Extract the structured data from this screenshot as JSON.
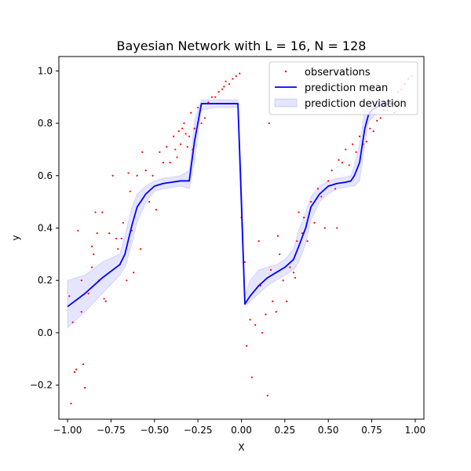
{
  "chart_data": {
    "type": "line",
    "title": "Bayesian Network with L = 16, N = 128",
    "xlabel": "X",
    "ylabel": "y",
    "xlim": [
      -1.05,
      1.05
    ],
    "ylim": [
      -0.33,
      1.055
    ],
    "grid": false,
    "legend_placement": "top-right",
    "xticks": [
      -1.0,
      -0.75,
      -0.5,
      -0.25,
      0.0,
      0.25,
      0.5,
      0.75,
      1.0
    ],
    "xtick_labels": [
      "−1.00",
      "−0.75",
      "−0.50",
      "−0.25",
      "0.00",
      "0.25",
      "0.50",
      "0.75",
      "1.00"
    ],
    "yticks": [
      -0.2,
      0.0,
      0.2,
      0.4,
      0.6,
      0.8,
      1.0
    ],
    "ytick_labels": [
      "−0.2",
      "0.0",
      "0.2",
      "0.4",
      "0.6",
      "0.8",
      "1.0"
    ],
    "colors": {
      "observations": "#ff0000",
      "mean": "#0000ff",
      "band_fill": "#0000ff",
      "band_opacity": 0.1
    },
    "series": [
      {
        "name": "observations",
        "kind": "scatter",
        "x": [
          -0.99,
          -0.98,
          -0.97,
          -0.96,
          -0.95,
          -0.94,
          -0.92,
          -0.91,
          -0.9,
          -0.88,
          -0.86,
          -0.85,
          -0.84,
          -0.83,
          -0.82,
          -0.8,
          -0.79,
          -0.78,
          -0.76,
          -0.74,
          -0.72,
          -0.71,
          -0.7,
          -0.69,
          -0.68,
          -0.66,
          -0.65,
          -0.64,
          -0.63,
          -0.62,
          -0.6,
          -0.58,
          -0.57,
          -0.55,
          -0.53,
          -0.51,
          -0.49,
          -0.47,
          -0.45,
          -0.43,
          -0.41,
          -0.39,
          -0.38,
          -0.37,
          -0.36,
          -0.35,
          -0.34,
          -0.33,
          -0.32,
          -0.31,
          -0.3,
          -0.29,
          -0.28,
          -0.27,
          -0.25,
          -0.23,
          -0.21,
          -0.19,
          -0.17,
          -0.15,
          -0.13,
          -0.11,
          -0.1,
          -0.09,
          -0.07,
          -0.05,
          -0.03,
          -0.01,
          0.0,
          0.02,
          0.03,
          0.05,
          0.06,
          0.08,
          0.1,
          0.11,
          0.12,
          0.14,
          0.15,
          0.17,
          0.18,
          0.2,
          0.21,
          0.22,
          0.24,
          0.26,
          0.28,
          0.3,
          0.31,
          0.32,
          0.33,
          0.35,
          0.36,
          0.38,
          0.4,
          0.42,
          0.44,
          0.46,
          0.48,
          0.5,
          0.52,
          0.54,
          0.56,
          0.58,
          0.6,
          0.62,
          0.64,
          0.66,
          0.68,
          0.7,
          0.72,
          0.74,
          0.76,
          0.78,
          0.8,
          0.82,
          0.84,
          0.86,
          0.88,
          0.9,
          0.92,
          0.94,
          0.96,
          0.98,
          -0.92,
          -0.86,
          0.16,
          0.55
        ],
        "y": [
          0.14,
          -0.27,
          0.04,
          -0.15,
          -0.14,
          0.39,
          0.2,
          -0.12,
          -0.21,
          0.15,
          0.33,
          0.3,
          0.46,
          0.38,
          0.2,
          0.46,
          0.13,
          0.12,
          0.38,
          0.6,
          0.36,
          0.32,
          0.26,
          0.36,
          0.42,
          0.2,
          0.61,
          0.54,
          0.39,
          0.23,
          0.6,
          0.32,
          0.69,
          0.62,
          0.5,
          0.6,
          0.47,
          0.69,
          0.65,
          0.71,
          0.65,
          0.75,
          0.7,
          0.67,
          0.77,
          0.72,
          0.78,
          0.8,
          0.76,
          0.71,
          0.75,
          0.84,
          0.7,
          0.78,
          0.86,
          0.8,
          0.82,
          0.88,
          0.9,
          0.9,
          0.92,
          0.93,
          0.94,
          0.96,
          0.95,
          0.97,
          0.98,
          0.99,
          0.44,
          0.27,
          -0.05,
          0.05,
          -0.17,
          0.03,
          0.35,
          0.18,
          0.0,
          0.07,
          -0.24,
          0.24,
          0.12,
          0.08,
          0.37,
          0.3,
          0.2,
          0.12,
          0.25,
          0.23,
          0.21,
          0.35,
          0.46,
          0.38,
          0.44,
          0.35,
          0.5,
          0.42,
          0.55,
          0.52,
          0.4,
          0.58,
          0.62,
          0.55,
          0.66,
          0.65,
          0.7,
          0.64,
          0.72,
          0.69,
          0.75,
          0.72,
          0.73,
          0.78,
          0.77,
          0.81,
          0.82,
          0.85,
          0.85,
          0.89,
          0.84,
          0.92,
          0.93,
          0.95,
          0.97,
          0.98,
          0.08,
          0.25,
          0.8,
          0.4
        ],
        "color": "#ff0000"
      },
      {
        "name": "prediction mean",
        "kind": "line",
        "x": [
          -1.0,
          -0.9,
          -0.8,
          -0.7,
          -0.67,
          -0.63,
          -0.6,
          -0.55,
          -0.5,
          -0.45,
          -0.4,
          -0.35,
          -0.3,
          -0.27,
          -0.23,
          -0.15,
          -0.1,
          -0.05,
          -0.02,
          0.0,
          0.02,
          0.05,
          0.1,
          0.15,
          0.2,
          0.25,
          0.3,
          0.33,
          0.37,
          0.4,
          0.45,
          0.5,
          0.55,
          0.6,
          0.63,
          0.65,
          0.68,
          0.71,
          0.73,
          0.75,
          0.8,
          0.85,
          0.88
        ],
        "y": [
          0.1,
          0.15,
          0.21,
          0.26,
          0.3,
          0.41,
          0.48,
          0.53,
          0.56,
          0.57,
          0.575,
          0.58,
          0.58,
          0.73,
          0.875,
          0.875,
          0.875,
          0.875,
          0.875,
          0.5,
          0.11,
          0.14,
          0.18,
          0.21,
          0.23,
          0.25,
          0.28,
          0.33,
          0.4,
          0.48,
          0.53,
          0.56,
          0.57,
          0.575,
          0.58,
          0.6,
          0.65,
          0.78,
          0.83,
          0.85,
          0.87,
          0.875,
          0.875
        ],
        "color": "#0000ff"
      },
      {
        "name": "prediction deviation",
        "kind": "band",
        "x": [
          -1.0,
          -0.9,
          -0.8,
          -0.7,
          -0.67,
          -0.63,
          -0.6,
          -0.55,
          -0.5,
          -0.45,
          -0.4,
          -0.35,
          -0.3,
          -0.27,
          -0.23,
          -0.15,
          -0.1,
          -0.05,
          -0.02,
          0.0,
          0.02,
          0.05,
          0.1,
          0.15,
          0.2,
          0.25,
          0.3,
          0.33,
          0.37,
          0.4,
          0.45,
          0.5,
          0.55,
          0.6,
          0.63,
          0.65,
          0.68,
          0.71,
          0.73,
          0.75,
          0.8,
          0.85,
          0.88
        ],
        "lower": [
          0.02,
          0.08,
          0.15,
          0.22,
          0.25,
          0.34,
          0.42,
          0.5,
          0.54,
          0.55,
          0.555,
          0.56,
          0.55,
          0.65,
          0.85,
          0.86,
          0.86,
          0.86,
          0.86,
          0.42,
          0.1,
          0.12,
          0.15,
          0.18,
          0.2,
          0.22,
          0.24,
          0.27,
          0.34,
          0.43,
          0.5,
          0.53,
          0.55,
          0.555,
          0.56,
          0.56,
          0.58,
          0.72,
          0.8,
          0.82,
          0.85,
          0.86,
          0.86
        ],
        "upper": [
          0.2,
          0.22,
          0.27,
          0.3,
          0.37,
          0.48,
          0.53,
          0.56,
          0.58,
          0.59,
          0.595,
          0.6,
          0.62,
          0.81,
          0.89,
          0.89,
          0.89,
          0.89,
          0.89,
          0.6,
          0.14,
          0.2,
          0.24,
          0.25,
          0.26,
          0.28,
          0.32,
          0.39,
          0.46,
          0.52,
          0.56,
          0.58,
          0.59,
          0.595,
          0.6,
          0.64,
          0.72,
          0.85,
          0.87,
          0.88,
          0.89,
          0.89,
          0.89
        ],
        "color": "#0000ff"
      }
    ],
    "legend": [
      {
        "label": "observations",
        "kind": "marker"
      },
      {
        "label": "prediction mean",
        "kind": "line"
      },
      {
        "label": "prediction deviation",
        "kind": "patch"
      }
    ]
  }
}
